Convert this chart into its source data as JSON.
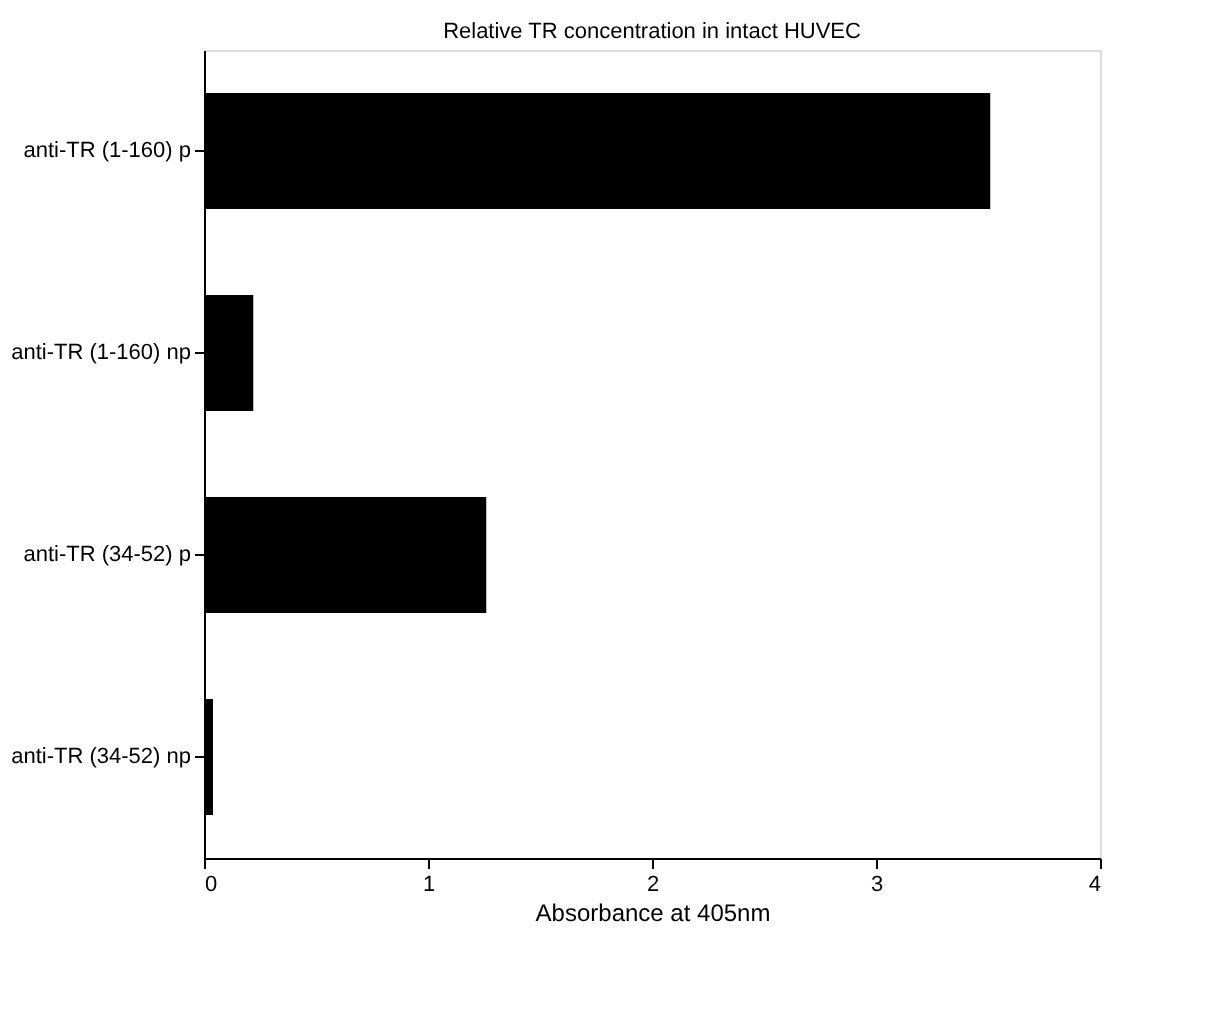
{
  "chart_data": {
    "type": "bar",
    "orientation": "horizontal",
    "title": "Relative TR concentration in intact HUVEC",
    "categories": [
      "anti-TR (1-160) p",
      "anti-TR (1-160) np",
      "anti-TR (34-52) p",
      "anti-TR (34-52) np"
    ],
    "values": [
      3.51,
      0.22,
      1.26,
      0.04
    ],
    "color": "#000000",
    "xlabel": "Absorbance at 405nm",
    "xlim": [
      0,
      4
    ],
    "xticks": [
      0,
      1,
      2,
      3,
      4
    ],
    "grid": false,
    "legend": false
  }
}
